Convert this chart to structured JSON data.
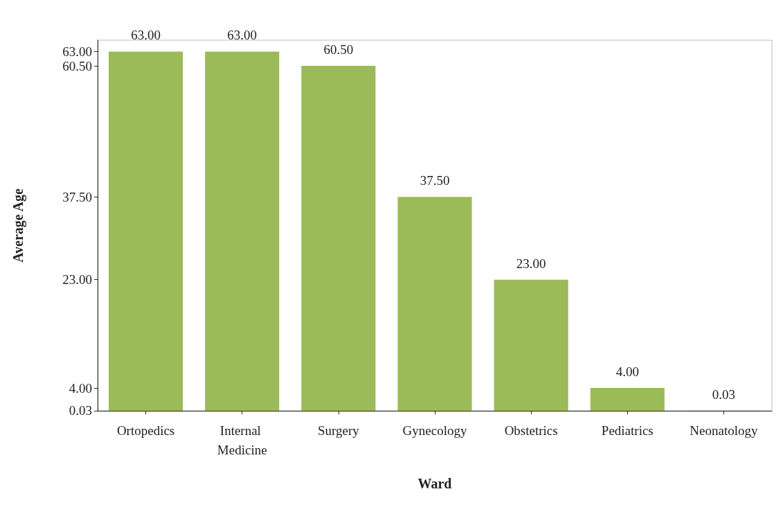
{
  "chart_data": {
    "type": "bar",
    "xlabel": "Ward",
    "ylabel": "Average Age",
    "categories": [
      "Ortopedics",
      "Internal Medicine",
      "Surgery",
      "Gynecology",
      "Obstetrics",
      "Pediatrics",
      "Neonatology"
    ],
    "values": [
      63,
      63,
      60.5,
      37.5,
      23,
      4,
      0.03
    ],
    "value_labels": [
      "63.00",
      "63.00",
      "60.50",
      "37.50",
      "23.00",
      "4.00",
      "0.03"
    ],
    "color": "#9bbb59",
    "ylim": [
      0,
      65
    ],
    "yticks": [
      {
        "value": 0.03,
        "label": "0.03"
      },
      {
        "value": 4,
        "label": "4.00"
      },
      {
        "value": 23,
        "label": "23.00"
      },
      {
        "value": 37.5,
        "label": "37.50"
      },
      {
        "value": 60.5,
        "label": "60.50"
      },
      {
        "value": 63,
        "label": "63.00"
      }
    ],
    "grid": false
  }
}
